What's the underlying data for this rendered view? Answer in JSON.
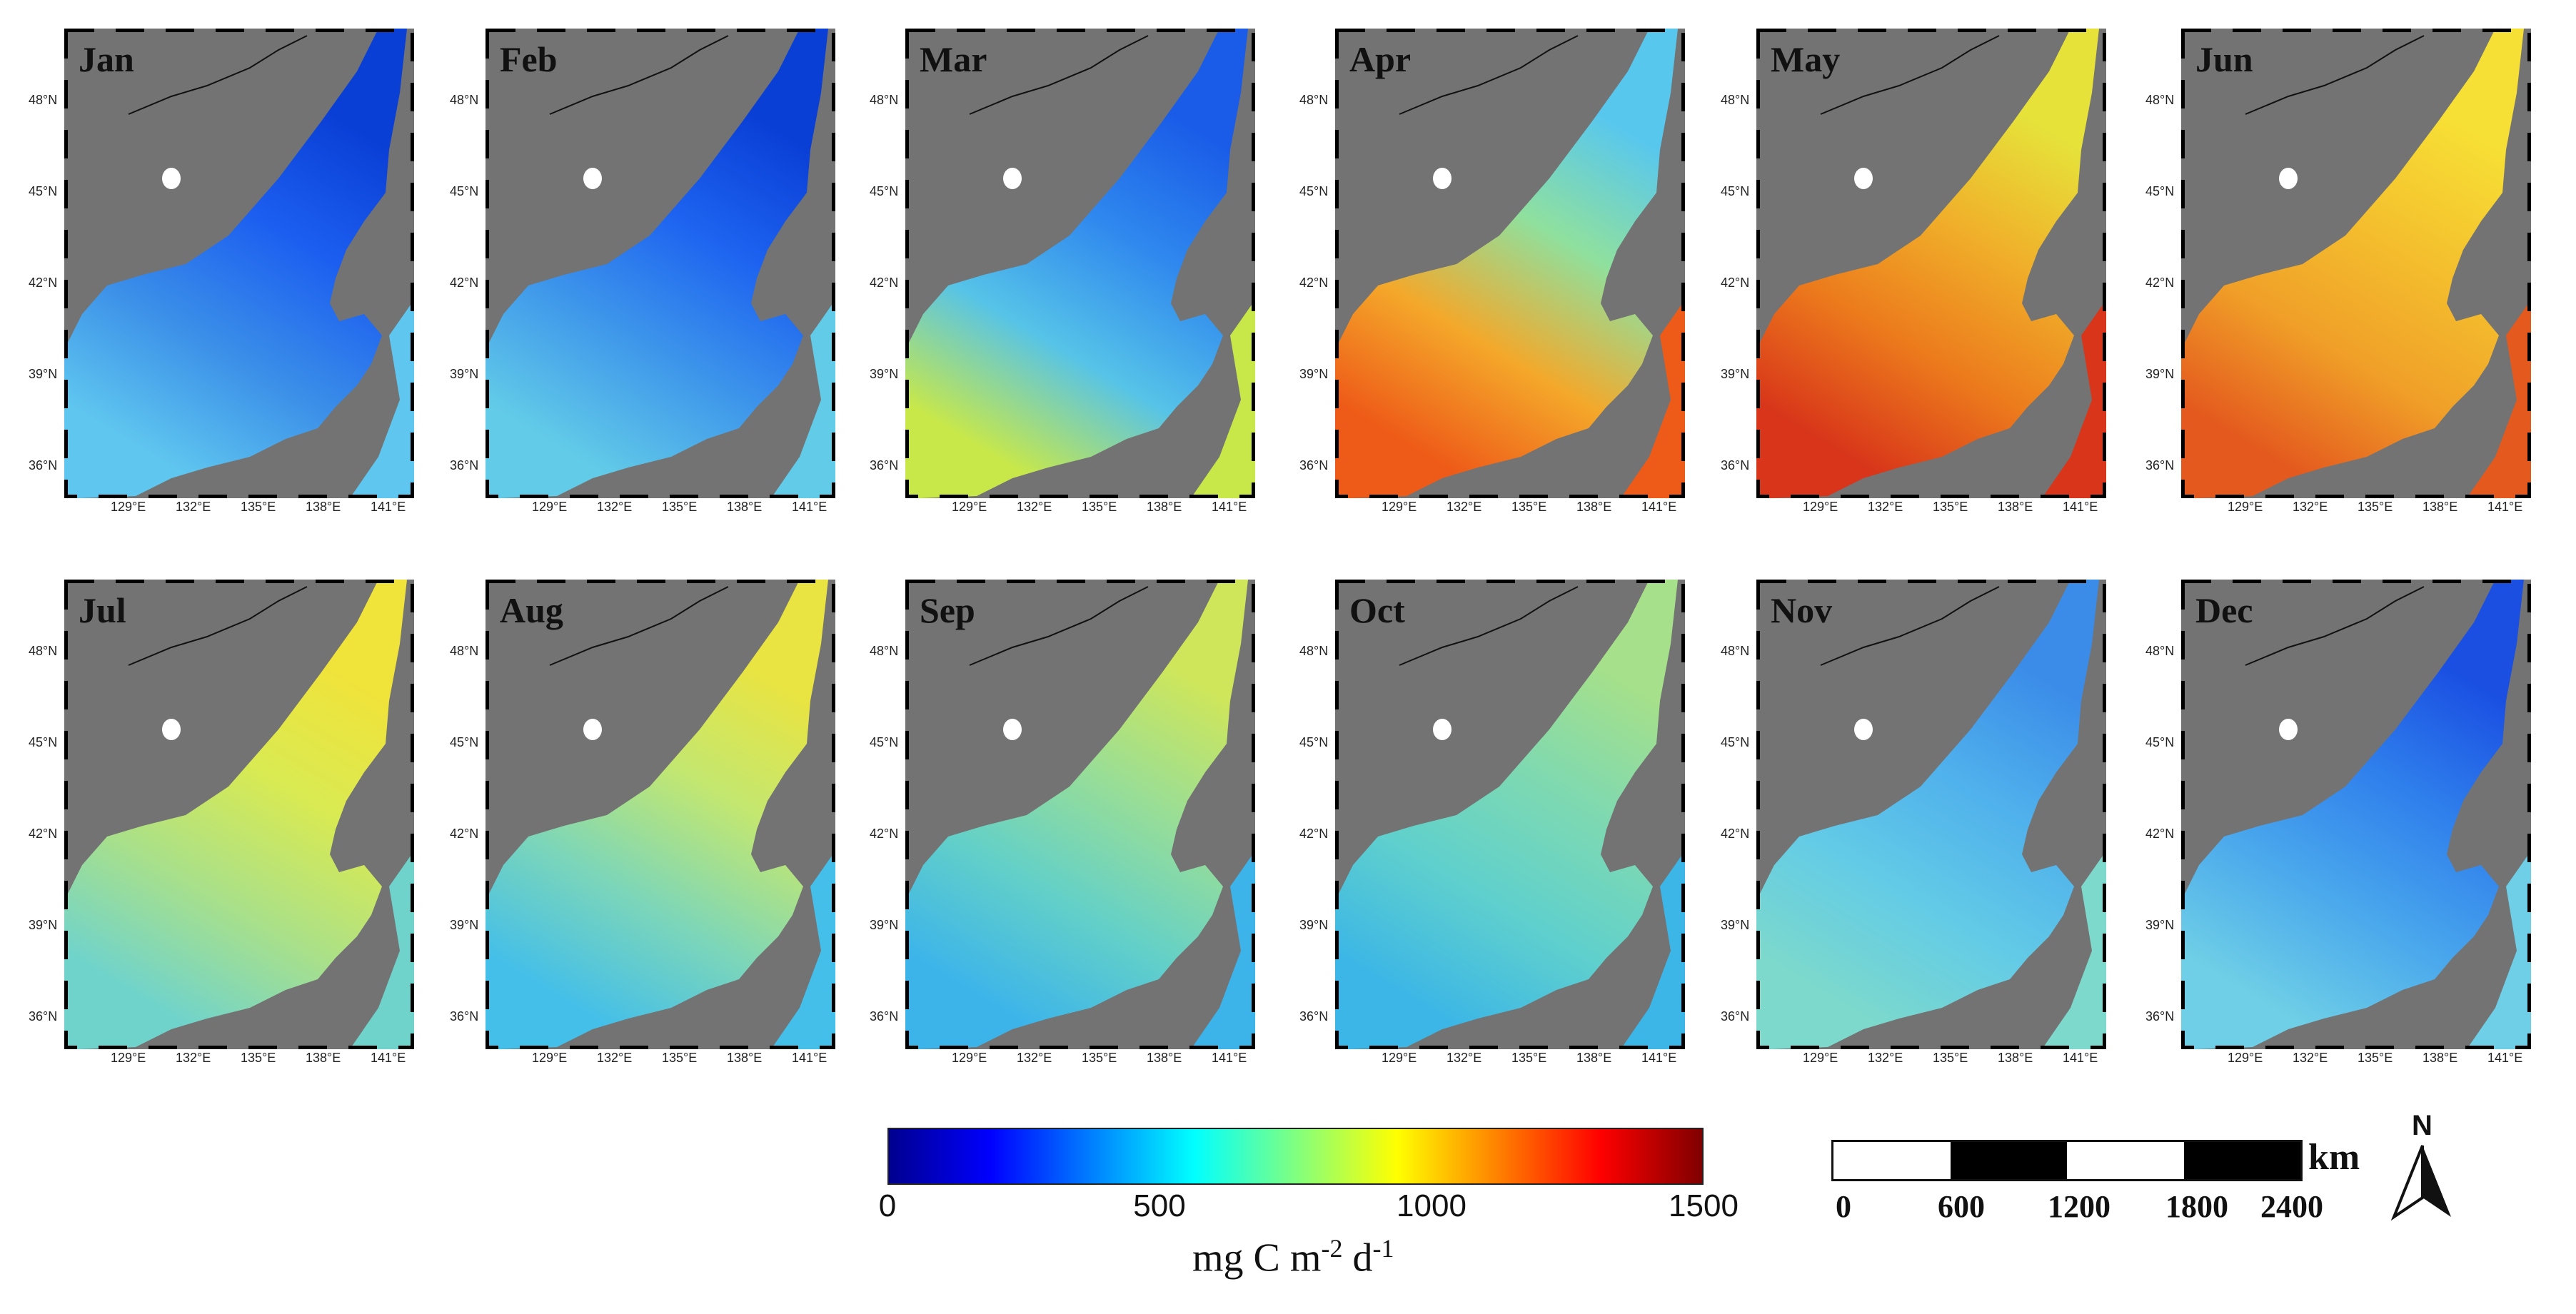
{
  "figure": {
    "panels": [
      {
        "month": "Jan",
        "colors": [
          "#0a3fd6",
          "#1c5ff0",
          "#3b8fe8",
          "#5fc6ef"
        ]
      },
      {
        "month": "Feb",
        "colors": [
          "#0a3fd6",
          "#1d63f0",
          "#3f98ea",
          "#62cbe8"
        ]
      },
      {
        "month": "Mar",
        "colors": [
          "#1a5ce8",
          "#2f88ee",
          "#56c3e8",
          "#c8e84a"
        ]
      },
      {
        "month": "Apr",
        "colors": [
          "#58c7ee",
          "#8fe09e",
          "#f4a82a",
          "#ee5a18"
        ]
      },
      {
        "month": "May",
        "colors": [
          "#e6e23a",
          "#f0b02a",
          "#ec7a1c",
          "#d8351a"
        ]
      },
      {
        "month": "Jun",
        "colors": [
          "#f7e035",
          "#f4c12e",
          "#f0a028",
          "#e45a1e"
        ]
      },
      {
        "month": "Jul",
        "colors": [
          "#f0e33a",
          "#d9ea52",
          "#a9e08a",
          "#6fd3cc"
        ]
      },
      {
        "month": "Aug",
        "colors": [
          "#e9e441",
          "#c3e770",
          "#7dd6b8",
          "#44bfe9"
        ]
      },
      {
        "month": "Sep",
        "colors": [
          "#cfe65a",
          "#9ade95",
          "#63d0c8",
          "#3cb4ea"
        ]
      },
      {
        "month": "Oct",
        "colors": [
          "#a6e08a",
          "#7fd9b0",
          "#5fd0cd",
          "#3cb6e6"
        ]
      },
      {
        "month": "Nov",
        "colors": [
          "#3b8ce8",
          "#4fb0ec",
          "#63cbe6",
          "#7cd9cc"
        ]
      },
      {
        "month": "Dec",
        "colors": [
          "#1a4fe2",
          "#2f7fec",
          "#4aa8ec",
          "#6fcfe6"
        ]
      }
    ],
    "lat_labels": [
      "48°N",
      "45°N",
      "42°N",
      "39°N",
      "36°N"
    ],
    "lon_labels": [
      "129°E",
      "132°E",
      "135°E",
      "138°E",
      "141°E"
    ],
    "land_color": "#737373",
    "island_color": "#ffffff"
  },
  "colorbar": {
    "min": 0,
    "max": 1500,
    "ticks": [
      "0",
      "500",
      "1000",
      "1500"
    ],
    "tick_values": [
      0,
      500,
      1000,
      1500
    ],
    "unit": "mg C m-2 d-1",
    "unit_main": "mg C m",
    "unit_exp1": "-2",
    "unit_mid": " d",
    "unit_exp2": "-1",
    "stops": [
      "#00008f",
      "#0000ff",
      "#0080ff",
      "#00ffff",
      "#80ff80",
      "#ffff00",
      "#ff8000",
      "#ff0000",
      "#800000"
    ]
  },
  "scalebar": {
    "labels": [
      "0",
      "600",
      "1200",
      "1800",
      "2400"
    ],
    "values": [
      0,
      600,
      1200,
      1800,
      2400
    ],
    "unit": "km"
  },
  "north_arrow": {
    "label": "N"
  }
}
